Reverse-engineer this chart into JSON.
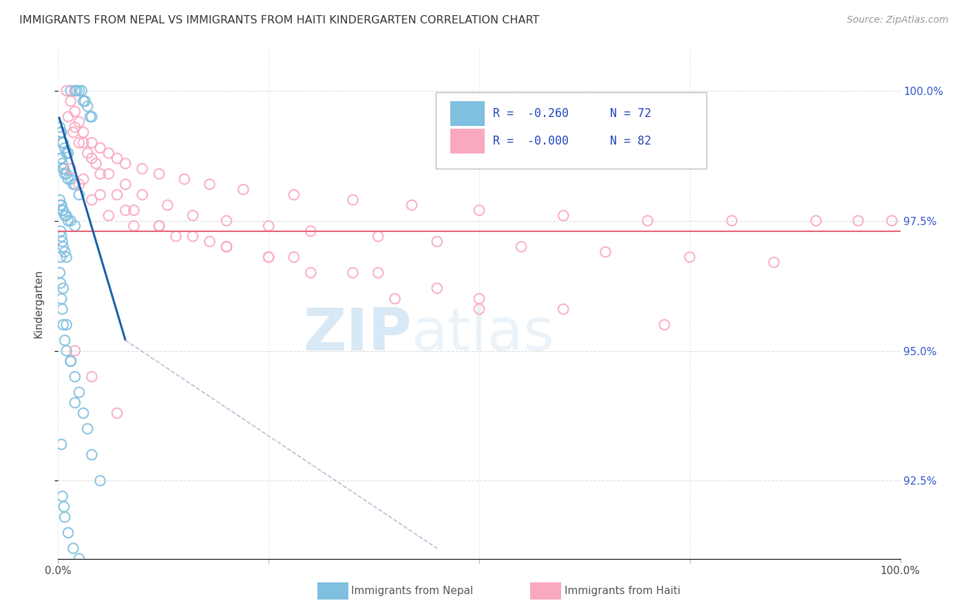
{
  "title": "IMMIGRANTS FROM NEPAL VS IMMIGRANTS FROM HAITI KINDERGARTEN CORRELATION CHART",
  "source": "Source: ZipAtlas.com",
  "ylabel": "Kindergarten",
  "legend_r_nepal": "R =  -0.260",
  "legend_n_nepal": "N = 72",
  "legend_r_haiti": "R =  -0.000",
  "legend_n_haiti": "N = 82",
  "color_nepal": "#7fbfdf",
  "color_haiti": "#f9a8c0",
  "color_nepal_line": "#1a5fa8",
  "color_haiti_line": "#e8607a",
  "watermark_zip": "ZIP",
  "watermark_atlas": "atlas",
  "nepal_scatter_x": [
    1.5,
    2.0,
    2.2,
    2.5,
    2.8,
    3.0,
    3.2,
    3.5,
    3.8,
    4.0,
    0.2,
    0.3,
    0.4,
    0.5,
    0.6,
    0.8,
    1.0,
    1.2,
    0.3,
    0.4,
    0.5,
    0.6,
    0.7,
    0.8,
    1.0,
    1.2,
    1.5,
    1.8,
    2.0,
    2.5,
    0.2,
    0.3,
    0.4,
    0.5,
    0.6,
    0.8,
    1.0,
    1.2,
    1.5,
    2.0,
    0.3,
    0.4,
    0.5,
    0.6,
    0.8,
    1.0,
    0.2,
    0.3,
    0.4,
    0.5,
    0.6,
    0.8,
    1.0,
    1.5,
    2.0,
    2.5,
    3.0,
    3.5,
    4.0,
    5.0,
    0.5,
    0.8,
    1.2,
    1.8,
    2.5,
    0.3,
    0.6,
    1.0,
    1.5,
    2.0,
    0.4,
    0.7
  ],
  "nepal_scatter_y": [
    100.0,
    100.0,
    100.0,
    100.0,
    100.0,
    99.8,
    99.8,
    99.7,
    99.5,
    99.5,
    99.3,
    99.2,
    99.2,
    99.0,
    99.0,
    98.9,
    98.8,
    98.8,
    98.7,
    98.7,
    98.6,
    98.5,
    98.5,
    98.4,
    98.4,
    98.3,
    98.3,
    98.2,
    98.2,
    98.0,
    97.9,
    97.8,
    97.8,
    97.7,
    97.7,
    97.6,
    97.6,
    97.5,
    97.5,
    97.4,
    97.3,
    97.2,
    97.1,
    97.0,
    96.9,
    96.8,
    96.5,
    96.3,
    96.0,
    95.8,
    95.5,
    95.2,
    95.0,
    94.8,
    94.5,
    94.2,
    93.8,
    93.5,
    93.0,
    92.5,
    92.2,
    91.8,
    91.5,
    91.2,
    91.0,
    96.8,
    96.2,
    95.5,
    94.8,
    94.0,
    93.2,
    92.0
  ],
  "haiti_scatter_x": [
    1.0,
    1.5,
    2.0,
    2.5,
    3.0,
    4.0,
    5.0,
    6.0,
    7.0,
    8.0,
    10.0,
    12.0,
    15.0,
    18.0,
    22.0,
    28.0,
    35.0,
    42.0,
    50.0,
    60.0,
    70.0,
    80.0,
    90.0,
    95.0,
    99.0,
    1.2,
    1.8,
    2.5,
    3.5,
    4.5,
    6.0,
    8.0,
    10.0,
    13.0,
    16.0,
    20.0,
    25.0,
    30.0,
    38.0,
    45.0,
    55.0,
    65.0,
    75.0,
    85.0,
    2.0,
    3.0,
    4.0,
    5.0,
    7.0,
    9.0,
    12.0,
    16.0,
    20.0,
    25.0,
    30.0,
    40.0,
    50.0,
    1.5,
    2.5,
    4.0,
    6.0,
    9.0,
    14.0,
    20.0,
    28.0,
    38.0,
    50.0,
    3.0,
    5.0,
    8.0,
    12.0,
    18.0,
    25.0,
    35.0,
    45.0,
    60.0,
    72.0,
    2.0,
    4.0,
    7.0
  ],
  "haiti_scatter_y": [
    100.0,
    99.8,
    99.6,
    99.4,
    99.2,
    99.0,
    98.9,
    98.8,
    98.7,
    98.6,
    98.5,
    98.4,
    98.3,
    98.2,
    98.1,
    98.0,
    97.9,
    97.8,
    97.7,
    97.6,
    97.5,
    97.5,
    97.5,
    97.5,
    97.5,
    99.5,
    99.2,
    99.0,
    98.8,
    98.6,
    98.4,
    98.2,
    98.0,
    97.8,
    97.6,
    97.5,
    97.4,
    97.3,
    97.2,
    97.1,
    97.0,
    96.9,
    96.8,
    96.7,
    99.3,
    99.0,
    98.7,
    98.4,
    98.0,
    97.7,
    97.4,
    97.2,
    97.0,
    96.8,
    96.5,
    96.0,
    95.8,
    98.5,
    98.2,
    97.9,
    97.6,
    97.4,
    97.2,
    97.0,
    96.8,
    96.5,
    96.0,
    98.3,
    98.0,
    97.7,
    97.4,
    97.1,
    96.8,
    96.5,
    96.2,
    95.8,
    95.5,
    95.0,
    94.5,
    93.8
  ],
  "haiti_line_y": 97.3,
  "nepal_line_x0": 0.1,
  "nepal_line_y0": 99.5,
  "nepal_line_x1": 8.0,
  "nepal_line_y1": 95.2,
  "nepal_dash_x0": 8.0,
  "nepal_dash_y0": 95.2,
  "nepal_dash_x1": 45.0,
  "nepal_dash_y1": 91.2,
  "xmin": 0.0,
  "xmax": 100.0,
  "ymin": 91.0,
  "ymax": 100.8,
  "background_color": "#ffffff",
  "grid_color": "#cccccc",
  "ytick_positions": [
    92.5,
    95.0,
    97.5,
    100.0
  ],
  "ytick_labels": [
    "92.5%",
    "95.0%",
    "97.5%",
    "100.0%"
  ]
}
